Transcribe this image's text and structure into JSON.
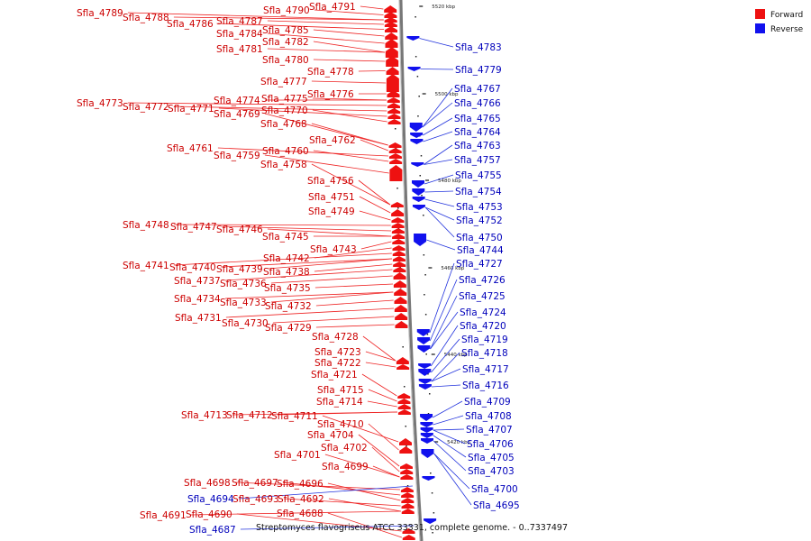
{
  "legend": {
    "forward": {
      "label": "Forward",
      "color": "#ee1111"
    },
    "reverse": {
      "label": "Reverse",
      "color": "#1111ee"
    }
  },
  "caption": "Streptomyces flavogriseus ATCC 33331, complete genome. - 0..7337497",
  "ticks": [
    "5520 kbp",
    "5500 kbp",
    "5480 kbp",
    "5460 kbp",
    "5440 kbp",
    "5420 kbp"
  ],
  "genes": {
    "forward": [
      "Sfla_4791",
      "Sfla_4790",
      "Sfla_4789",
      "Sfla_4788",
      "Sfla_4787",
      "Sfla_4786",
      "Sfla_4785",
      "Sfla_4784",
      "Sfla_4782",
      "Sfla_4781",
      "Sfla_4780",
      "Sfla_4778",
      "Sfla_4777",
      "Sfla_4776",
      "Sfla_4775",
      "Sfla_4774",
      "Sfla_4773",
      "Sfla_4772",
      "Sfla_4771",
      "Sfla_4770",
      "Sfla_4769",
      "Sfla_4768",
      "Sfla_4762",
      "Sfla_4761",
      "Sfla_4760",
      "Sfla_4759",
      "Sfla_4758",
      "Sfla_4756",
      "Sfla_4751",
      "Sfla_4749",
      "Sfla_4748",
      "Sfla_4747",
      "Sfla_4746",
      "Sfla_4745",
      "Sfla_4743",
      "Sfla_4742",
      "Sfla_4741",
      "Sfla_4740",
      "Sfla_4739",
      "Sfla_4738",
      "Sfla_4737",
      "Sfla_4736",
      "Sfla_4735",
      "Sfla_4734",
      "Sfla_4733",
      "Sfla_4732",
      "Sfla_4731",
      "Sfla_4730",
      "Sfla_4729",
      "Sfla_4728",
      "Sfla_4723",
      "Sfla_4722",
      "Sfla_4721",
      "Sfla_4715",
      "Sfla_4714",
      "Sfla_4713",
      "Sfla_4712",
      "Sfla_4711",
      "Sfla_4710",
      "Sfla_4704",
      "Sfla_4702",
      "Sfla_4701",
      "Sfla_4699",
      "Sfla_4698",
      "Sfla_4697",
      "Sfla_4696",
      "Sfla_4693",
      "Sfla_4692",
      "Sfla_4691",
      "Sfla_4690",
      "Sfla_4688"
    ],
    "reverse": [
      "Sfla_4783",
      "Sfla_4779",
      "Sfla_4767",
      "Sfla_4766",
      "Sfla_4765",
      "Sfla_4764",
      "Sfla_4763",
      "Sfla_4757",
      "Sfla_4755",
      "Sfla_4754",
      "Sfla_4753",
      "Sfla_4752",
      "Sfla_4750",
      "Sfla_4744",
      "Sfla_4727",
      "Sfla_4726",
      "Sfla_4725",
      "Sfla_4724",
      "Sfla_4720",
      "Sfla_4719",
      "Sfla_4718",
      "Sfla_4717",
      "Sfla_4716",
      "Sfla_4709",
      "Sfla_4708",
      "Sfla_4707",
      "Sfla_4706",
      "Sfla_4705",
      "Sfla_4703",
      "Sfla_4700",
      "Sfla_4695",
      "Sfla_4694",
      "Sfla_4687"
    ]
  }
}
